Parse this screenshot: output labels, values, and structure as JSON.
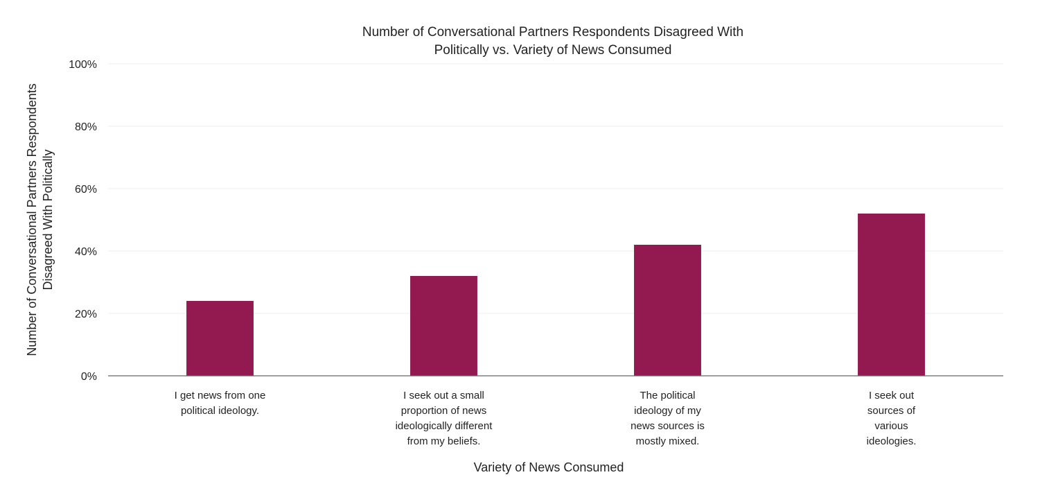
{
  "chart_data": {
    "type": "bar",
    "title_lines": [
      "Number of Conversational Partners Respondents Disagreed With",
      "Politically vs. Variety of News Consumed"
    ],
    "xlabel": "Variety of News Consumed",
    "ylabel_lines": [
      "Number of Conversational Partners Respondents",
      "Disagreed With Politically"
    ],
    "categories": [
      [
        "I get news from one",
        "political ideology."
      ],
      [
        "I seek out a small",
        "proportion of news",
        "ideologically different",
        "from my beliefs."
      ],
      [
        "The political",
        "ideology of my",
        "news sources is",
        "mostly mixed."
      ],
      [
        "I seek out",
        "sources of",
        "various",
        "ideologies."
      ]
    ],
    "values": [
      24,
      32,
      42,
      52
    ],
    "ylim": [
      0,
      100
    ],
    "yticks": [
      0,
      20,
      40,
      60,
      80,
      100
    ],
    "ytick_labels": [
      "0%",
      "20%",
      "40%",
      "60%",
      "80%",
      "100%"
    ],
    "grid": true,
    "bar_color": "#921a50"
  }
}
